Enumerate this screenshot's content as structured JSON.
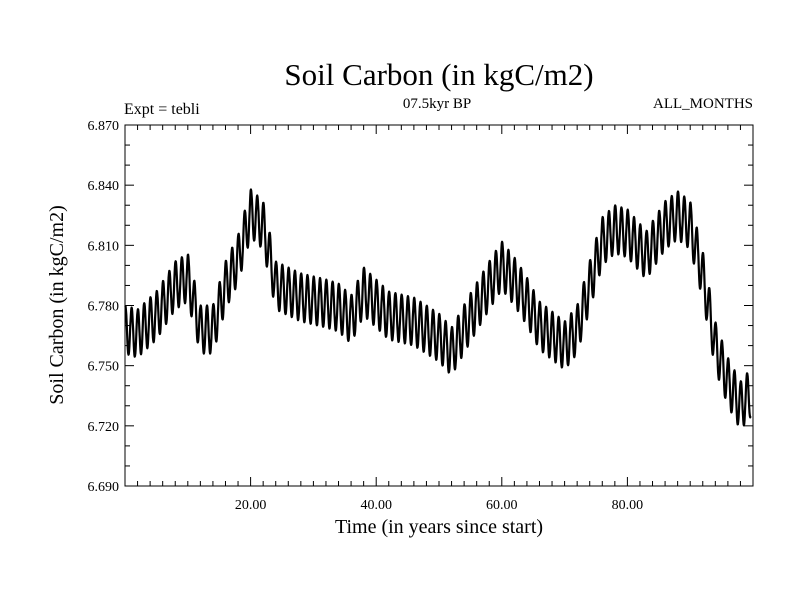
{
  "chart_data": {
    "type": "line",
    "title": "Soil Carbon (in kgC/m2)",
    "subtitle": "07.5kyr BP",
    "left_note": "Expt = tebli",
    "right_note": "ALL_MONTHS",
    "xlabel": "Time (in years since start)",
    "ylabel": "Soil Carbon (in kgC/m2)",
    "xlim": [
      0,
      100
    ],
    "ylim": [
      6.69,
      6.87
    ],
    "xticks": [
      20,
      40,
      60,
      80
    ],
    "xtick_labels": [
      "20.00",
      "40.00",
      "60.00",
      "80.00"
    ],
    "yticks": [
      6.69,
      6.72,
      6.75,
      6.78,
      6.81,
      6.84,
      6.87
    ],
    "ytick_labels": [
      "6.690",
      "6.720",
      "6.750",
      "6.780",
      "6.810",
      "6.840",
      "6.870"
    ],
    "grid": false,
    "series": [
      {
        "name": "Soil Carbon",
        "seasonal_amplitude": 0.012,
        "cycles_per_year": 1,
        "annual_mean": {
          "x": [
            0,
            2,
            5,
            8,
            10,
            12,
            14,
            16,
            18,
            20,
            22,
            24,
            28,
            32,
            34,
            36,
            38,
            42,
            46,
            50,
            52,
            55,
            58,
            60,
            62,
            64,
            66,
            70,
            72,
            74,
            76,
            78,
            80,
            83,
            86,
            88,
            90,
            92,
            94,
            96,
            98,
            100
          ],
          "y": [
            6.768,
            6.766,
            6.775,
            6.79,
            6.794,
            6.768,
            6.768,
            6.79,
            6.803,
            6.826,
            6.82,
            6.79,
            6.784,
            6.781,
            6.779,
            6.773,
            6.787,
            6.775,
            6.772,
            6.764,
            6.757,
            6.774,
            6.79,
            6.8,
            6.792,
            6.782,
            6.77,
            6.76,
            6.768,
            6.79,
            6.812,
            6.818,
            6.816,
            6.805,
            6.82,
            6.825,
            6.82,
            6.795,
            6.76,
            6.742,
            6.73,
            6.738
          ]
        }
      }
    ]
  }
}
